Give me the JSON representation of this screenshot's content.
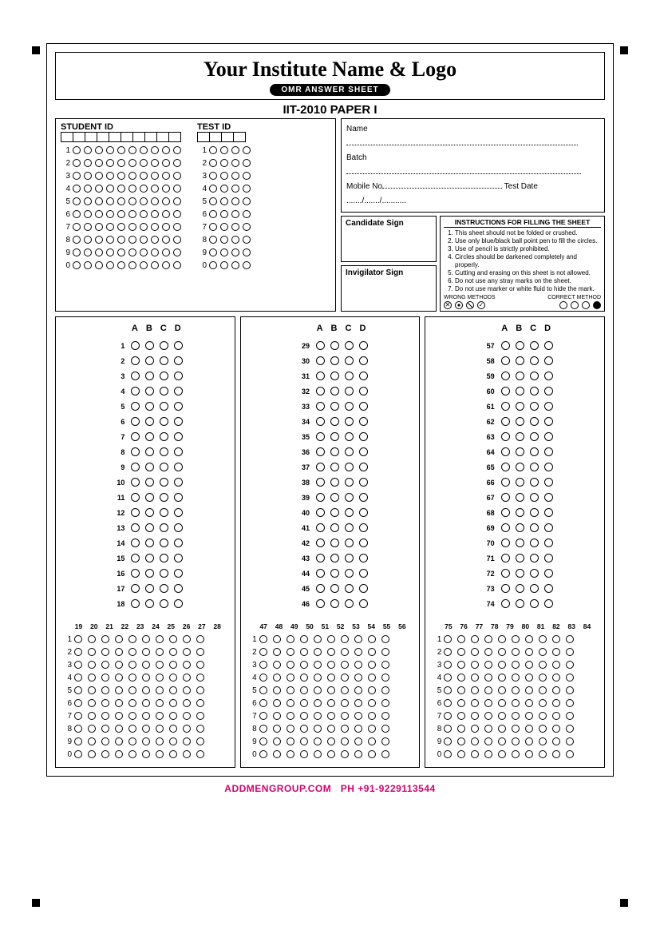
{
  "header": {
    "institute": "Your Institute Name & Logo",
    "pill": "OMR ANSWER SHEET",
    "paper": "IIT-2010 PAPER I"
  },
  "id_section": {
    "student_label": "STUDENT ID",
    "student_cols": 10,
    "test_label": "TEST ID",
    "test_cols": 4,
    "digits": [
      "1",
      "2",
      "3",
      "4",
      "5",
      "6",
      "7",
      "8",
      "9",
      "0"
    ]
  },
  "info": {
    "name_label": "Name",
    "batch_label": "Batch",
    "mobile_label": "Mobile No",
    "testdate_label": "Test Date",
    "date_dots": "......./......./..........."
  },
  "signs": {
    "candidate": "Candidate Sign",
    "invigilator": "Invigilator Sign"
  },
  "instructions": {
    "title": "INSTRUCTIONS FOR FILLING THE SHEET",
    "items": [
      "This sheet should not be folded or crushed.",
      "Use only blue/black ball point pen to fill the circles.",
      "Use of pencil is strictly prohibited.",
      "Circles should be darkened completely and properly.",
      "Cutting and erasing on this sheet is not allowed.",
      "Do not use any stray marks on the sheet.",
      "Do not use marker or white fluid to hide the mark."
    ],
    "wrong": "WRONG METHODS",
    "correct": "CORRECT METHOD"
  },
  "answers": {
    "options": [
      "A",
      "B",
      "C",
      "D"
    ],
    "col1_start": 1,
    "col1_end": 18,
    "col2_start": 29,
    "col2_end": 46,
    "col3_start": 57,
    "col3_end": 74,
    "grid1_cols": [
      "19",
      "20",
      "21",
      "22",
      "23",
      "24",
      "25",
      "26",
      "27",
      "28"
    ],
    "grid2_cols": [
      "47",
      "48",
      "49",
      "50",
      "51",
      "52",
      "53",
      "54",
      "55",
      "56"
    ],
    "grid3_cols": [
      "75",
      "76",
      "77",
      "78",
      "79",
      "80",
      "81",
      "82",
      "83",
      "84"
    ],
    "grid_rows": [
      "1",
      "2",
      "3",
      "4",
      "5",
      "6",
      "7",
      "8",
      "9",
      "0"
    ]
  },
  "footer": {
    "site": "ADDMENGROUP.COM",
    "phone": "PH +91-9229113544"
  },
  "colors": {
    "accent": "#d6006c",
    "fg": "#000000",
    "bg": "#ffffff"
  }
}
